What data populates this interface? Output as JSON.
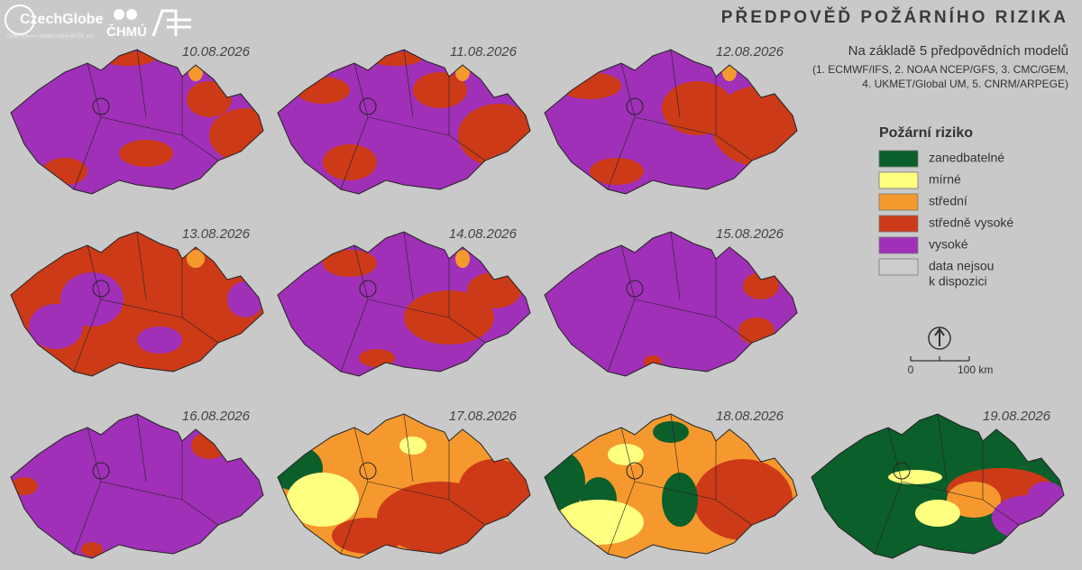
{
  "header": {
    "logos": [
      "CzechGlobe",
      "ČHMÚ"
    ],
    "logo_caption": "Ústav výzkumu globální změny AV ČR, v.v.i.",
    "title": "PŘEDPOVĚĎ POŽÁRNÍHO RIZIKA",
    "subtitle": "Na základě 5 předpovědních modelů",
    "models": [
      "(1. ECMWF/IFS, 2. NOAA NCEP/GFS, 3. CMC/GEM,",
      "4. UKMET/Global UM, 5. CNRM/ARPEGE)"
    ]
  },
  "maps": [
    {
      "date": "10.08.2026"
    },
    {
      "date": "11.08.2026"
    },
    {
      "date": "12.08.2026"
    },
    {
      "date": "13.08.2026"
    },
    {
      "date": "14.08.2026"
    },
    {
      "date": "15.08.2026"
    },
    {
      "date": "16.08.2026"
    },
    {
      "date": "17.08.2026"
    },
    {
      "date": "18.08.2026"
    },
    {
      "date": "19.08.2026"
    }
  ],
  "legend": {
    "title": "Požární riziko",
    "items": [
      {
        "lines": [
          "zanedbatelné"
        ],
        "color": "#0b5f2a"
      },
      {
        "lines": [
          "mírné"
        ],
        "color": "#ffff80"
      },
      {
        "lines": [
          "střední"
        ],
        "color": "#f5992e"
      },
      {
        "lines": [
          "středně vysoké"
        ],
        "color": "#cc3a18"
      },
      {
        "lines": [
          "vysoké"
        ],
        "color": "#a030b8"
      },
      {
        "lines": [
          "data nejsou",
          "k dispozici"
        ],
        "color": "#cccccc"
      }
    ]
  },
  "scale": {
    "labels": [
      "0",
      "100 km"
    ]
  }
}
